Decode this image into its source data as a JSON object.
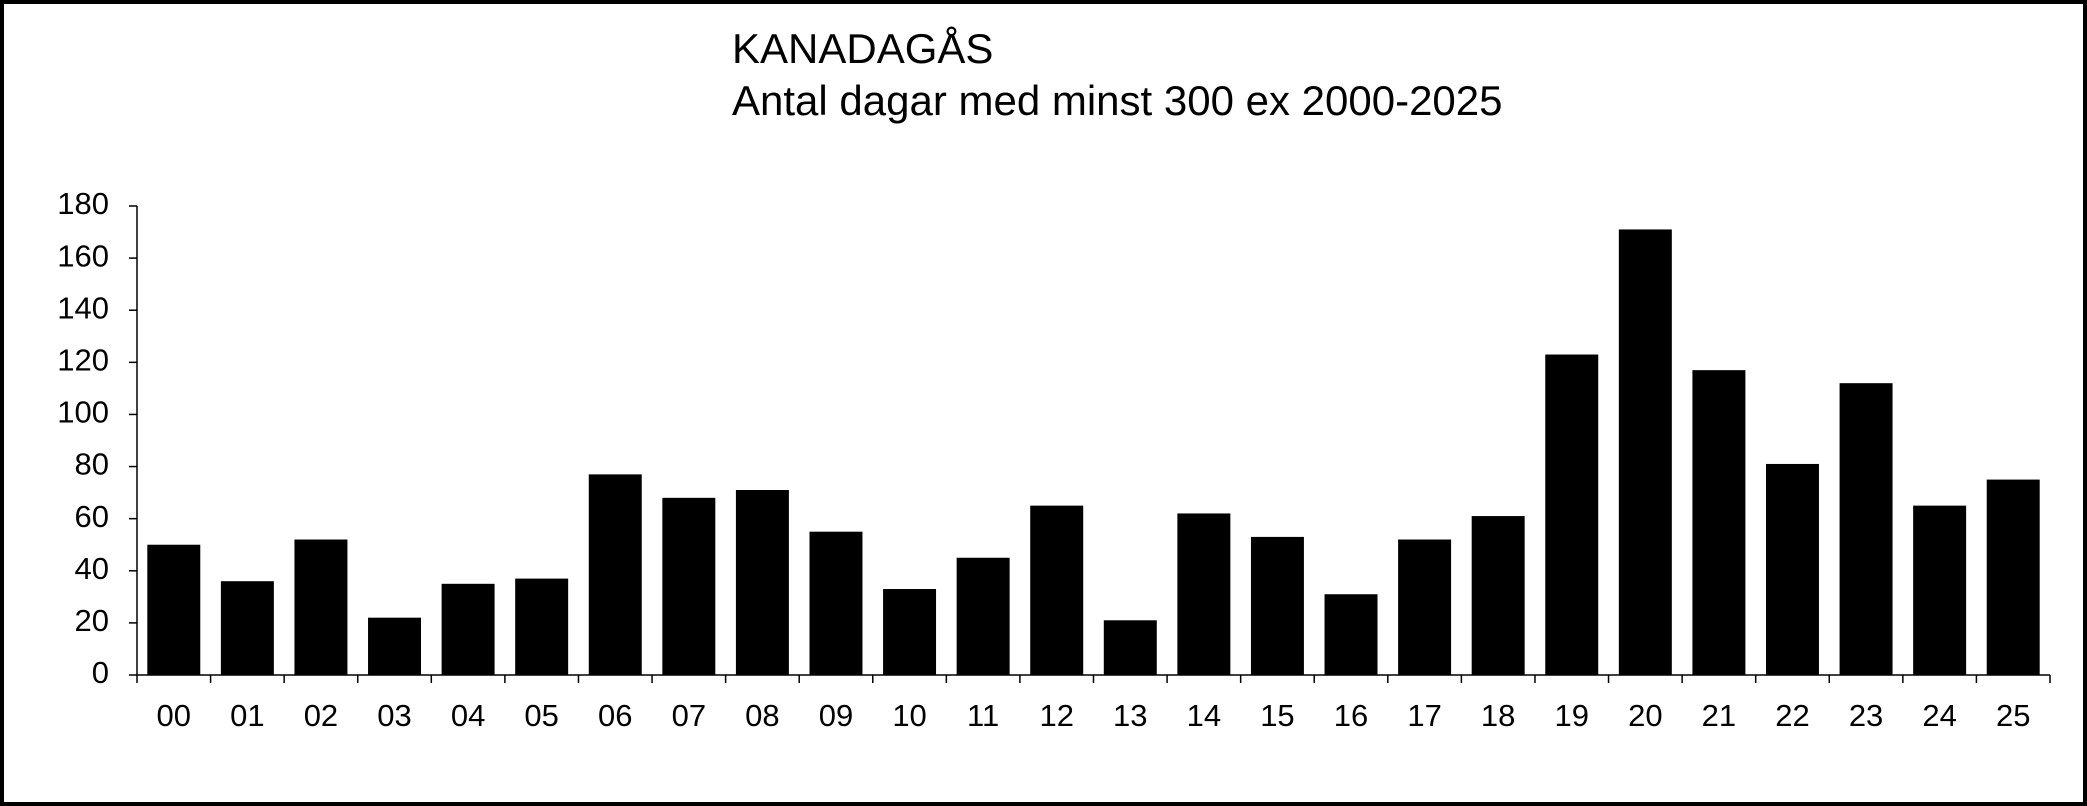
{
  "chart_data": {
    "type": "bar",
    "title": "KANADAGÅS",
    "subtitle": "Antal dagar med minst 300 ex 2000-2025",
    "categories": [
      "00",
      "01",
      "02",
      "03",
      "04",
      "05",
      "06",
      "07",
      "08",
      "09",
      "10",
      "11",
      "12",
      "13",
      "14",
      "15",
      "16",
      "17",
      "18",
      "19",
      "20",
      "21",
      "22",
      "23",
      "24",
      "25"
    ],
    "values": [
      50,
      36,
      52,
      22,
      35,
      37,
      77,
      68,
      71,
      55,
      33,
      45,
      65,
      21,
      62,
      53,
      31,
      52,
      61,
      123,
      171,
      117,
      81,
      112,
      65,
      75
    ],
    "color": "#000000",
    "ylim": [
      0,
      180
    ],
    "yticks": [
      0,
      20,
      40,
      60,
      80,
      100,
      120,
      140,
      160,
      180
    ],
    "grid": false
  }
}
